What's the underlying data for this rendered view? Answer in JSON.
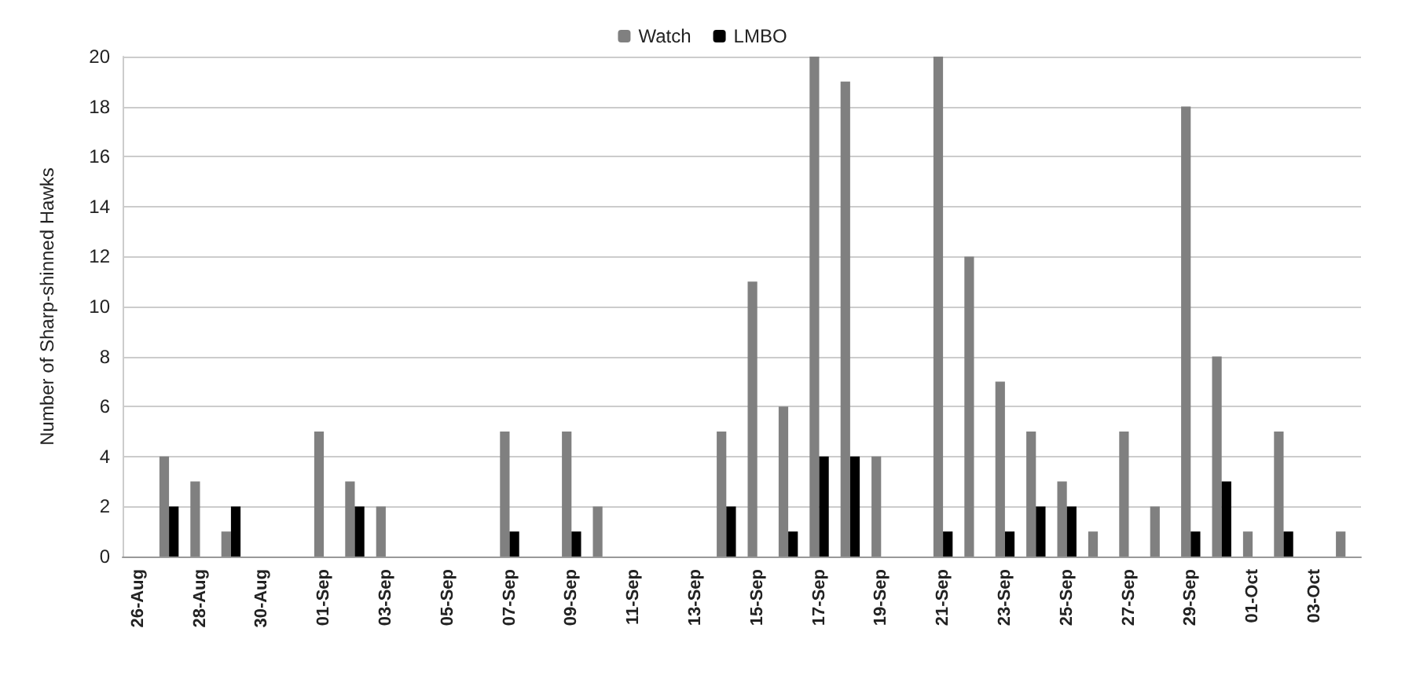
{
  "chart_data": {
    "type": "bar",
    "ylabel": "Number of Sharp-shinned Hawks",
    "categories": [
      "26-Aug",
      null,
      "28-Aug",
      null,
      "30-Aug",
      null,
      "01-Sep",
      null,
      "03-Sep",
      null,
      "05-Sep",
      null,
      "07-Sep",
      null,
      "09-Sep",
      null,
      "11-Sep",
      null,
      "13-Sep",
      null,
      "15-Sep",
      null,
      "17-Sep",
      null,
      "19-Sep",
      null,
      "21-Sep",
      null,
      "23-Sep",
      null,
      "25-Sep",
      null,
      "27-Sep",
      null,
      "29-Sep",
      null,
      "01-Oct",
      null,
      "03-Oct",
      null
    ],
    "series": [
      {
        "name": "Watch",
        "color": "#808080",
        "values": [
          null,
          4,
          3,
          1,
          0,
          null,
          5,
          3,
          2,
          null,
          0,
          null,
          5,
          null,
          5,
          2,
          0,
          null,
          0,
          5,
          11,
          6,
          20,
          19,
          4,
          null,
          20,
          12,
          7,
          5,
          3,
          1,
          5,
          2,
          18,
          8,
          1,
          5,
          0,
          1
        ]
      },
      {
        "name": "LMBO",
        "color": "#000000",
        "values": [
          null,
          2,
          null,
          2,
          null,
          null,
          null,
          2,
          null,
          null,
          null,
          null,
          1,
          null,
          1,
          null,
          null,
          null,
          null,
          2,
          null,
          1,
          4,
          4,
          null,
          null,
          1,
          null,
          1,
          2,
          2,
          null,
          null,
          null,
          1,
          3,
          null,
          1,
          null,
          null
        ]
      }
    ],
    "ylim": [
      0,
      20
    ],
    "yticks": [
      0,
      2,
      4,
      6,
      8,
      10,
      12,
      14,
      16,
      18,
      20
    ],
    "grid": "y",
    "legend": "top"
  }
}
